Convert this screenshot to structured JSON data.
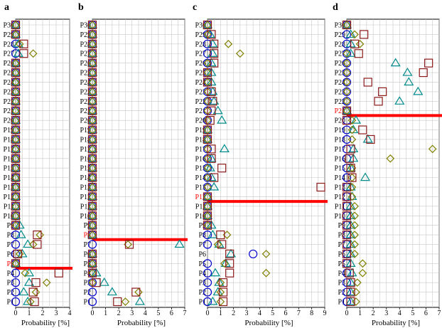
{
  "figure": {
    "xlabel": "Probability [%]",
    "categories": [
      "P1",
      "P2",
      "P3",
      "P4",
      "P5",
      "P6",
      "P7",
      "P8",
      "P9",
      "P10",
      "P11",
      "P12",
      "P13",
      "P14",
      "P15",
      "P16",
      "P17",
      "P18",
      "P19",
      "P20",
      "P21",
      "P22",
      "P23",
      "P24",
      "P25",
      "P26",
      "P27",
      "P28",
      "P29",
      "P30"
    ],
    "colors": {
      "square": "#8b1a1a",
      "diamond": "#808000",
      "triangle": "#008b8b",
      "circle": "#0000cc",
      "highlight": "#ff0000",
      "grid": "#c8c8c8"
    }
  },
  "chart_data": [
    {
      "type": "scatter",
      "panel": "a",
      "xlim": [
        0,
        4
      ],
      "xticks": [
        0,
        1,
        2,
        3,
        4
      ],
      "xlabel": "Probability [%]",
      "highlight": "P5",
      "series": [
        {
          "marker": "square",
          "values": [
            1.4,
            1.3,
            1.5,
            3.2,
            0,
            0.15,
            1.6,
            1.6,
            0,
            0,
            0,
            0,
            0,
            0,
            0,
            0,
            0,
            0,
            0,
            0,
            0,
            0,
            0,
            0,
            0,
            0,
            0.6,
            0.6,
            0,
            0
          ]
        },
        {
          "marker": "diamond",
          "values": [
            1.1,
            1.5,
            2.3,
            0.7,
            0,
            0.3,
            1.3,
            1.8,
            0,
            0,
            0,
            0,
            0,
            0,
            0,
            0,
            0,
            0,
            0,
            0,
            0,
            0,
            0,
            0,
            0,
            0,
            1.3,
            0.3,
            0,
            0
          ]
        },
        {
          "marker": "triangle",
          "values": [
            0.9,
            0.6,
            1.0,
            1.0,
            0,
            0.5,
            0.9,
            0.4,
            0.3,
            0,
            0,
            0,
            0,
            0,
            0,
            0,
            0,
            0,
            0,
            0,
            0,
            0,
            0,
            0,
            0,
            0,
            0.2,
            0.2,
            0,
            0
          ]
        },
        {
          "marker": "circle",
          "values": [
            0,
            0,
            0,
            0,
            0,
            0,
            0,
            0,
            0,
            0,
            0,
            0,
            0,
            0,
            0,
            0,
            0,
            0,
            0,
            0,
            0,
            0,
            0,
            0,
            0,
            0,
            0,
            0,
            0,
            0
          ]
        }
      ]
    },
    {
      "type": "scatter",
      "panel": "b",
      "xlim": [
        0,
        7
      ],
      "xticks": [
        0,
        1,
        2,
        3,
        4,
        5,
        6,
        7
      ],
      "xlabel": "Probability [%]",
      "highlight": "P8",
      "series": [
        {
          "marker": "square",
          "values": [
            1.9,
            3.3,
            0.3,
            0,
            0,
            0,
            2.8,
            0,
            0,
            0,
            0,
            0,
            0,
            0,
            0,
            0,
            0,
            0,
            0,
            0,
            0,
            0,
            0,
            0,
            0,
            0,
            0,
            0,
            0,
            0
          ]
        },
        {
          "marker": "diamond",
          "values": [
            2.5,
            3.5,
            0,
            0,
            0,
            0,
            2.7,
            0,
            0,
            0,
            0,
            0,
            0,
            0,
            0,
            0,
            0,
            0,
            0,
            0,
            0,
            0,
            0,
            0,
            0,
            0,
            0,
            0,
            0,
            0
          ]
        },
        {
          "marker": "triangle",
          "values": [
            3.6,
            1.5,
            0.9,
            0.3,
            0,
            0,
            6.6,
            0,
            0,
            0,
            0,
            0,
            0,
            0,
            0,
            0,
            0,
            0,
            0,
            0,
            0,
            0,
            0,
            0,
            0,
            0,
            0,
            0,
            0,
            0
          ]
        },
        {
          "marker": "circle",
          "values": [
            0,
            0,
            0,
            0,
            0,
            0,
            0,
            0,
            0,
            0,
            0,
            0,
            0,
            0,
            0,
            0,
            0,
            0,
            0,
            0,
            0,
            0,
            0,
            0,
            0,
            0,
            0,
            0,
            0,
            0
          ]
        }
      ]
    },
    {
      "type": "scatter",
      "panel": "c",
      "xlim": [
        0,
        9
      ],
      "xticks": [
        0,
        1,
        2,
        3,
        4,
        5,
        6,
        7,
        8,
        9
      ],
      "xlabel": "Probability [%]",
      "highlight": "P12",
      "series": [
        {
          "marker": "square",
          "values": [
            1.2,
            1.2,
            1.2,
            1.7,
            1.7,
            1.7,
            1.1,
            1.0,
            0,
            0,
            0,
            0,
            8.7,
            0.5,
            1.1,
            0.3,
            0.3,
            0,
            0,
            0.2,
            0.3,
            0.4,
            0.3,
            0,
            0,
            0.5,
            0.5,
            0.5,
            0.3,
            0
          ]
        },
        {
          "marker": "diamond",
          "values": [
            1.0,
            1.0,
            1.0,
            4.5,
            1.3,
            4.5,
            0.8,
            1.5,
            0,
            0,
            0,
            0,
            0,
            0,
            0,
            0,
            0,
            0,
            0,
            0,
            0,
            0,
            0,
            0,
            0,
            0,
            2.5,
            1.6,
            0,
            0
          ]
        },
        {
          "marker": "triangle",
          "values": [
            0.4,
            0.8,
            0.9,
            0.6,
            1.4,
            1.8,
            0.9,
            0.4,
            0.3,
            0,
            0,
            0,
            0.5,
            0.3,
            0.2,
            0.3,
            1.3,
            0,
            0,
            1.1,
            0.8,
            0.5,
            0.4,
            0.3,
            0.3,
            0.3,
            0.4,
            0.4,
            0.2,
            0
          ]
        },
        {
          "marker": "circle",
          "values": [
            0,
            0,
            0,
            0,
            0,
            3.5,
            0,
            0,
            0,
            0,
            0,
            0,
            0,
            0,
            0,
            0,
            0,
            0,
            0,
            0,
            0,
            0,
            0,
            0,
            0,
            0,
            0,
            0,
            0,
            0
          ]
        }
      ]
    },
    {
      "type": "scatter",
      "panel": "d",
      "xlim": [
        0,
        7
      ],
      "xticks": [
        0,
        1,
        2,
        3,
        4,
        5,
        6,
        7
      ],
      "xlabel": "Probability [%]",
      "highlight": "P21",
      "series": [
        {
          "marker": "square",
          "values": [
            0.3,
            0.3,
            0.3,
            0.2,
            0,
            0,
            0,
            0,
            0,
            0,
            0,
            0,
            0,
            0.4,
            0.3,
            0.2,
            0.3,
            1.8,
            1.2,
            0,
            0,
            2.4,
            2.7,
            1.6,
            5.8,
            6.2,
            0.9,
            0.6,
            1.3,
            0
          ]
        },
        {
          "marker": "diamond",
          "values": [
            0.7,
            0.7,
            0.8,
            1.2,
            1.2,
            0.6,
            0.6,
            0.6,
            0.6,
            0.6,
            0.6,
            0.4,
            0.4,
            0.4,
            0.4,
            3.3,
            6.5,
            0.4,
            0.4,
            0.4,
            0,
            0,
            0,
            0,
            0,
            0,
            0,
            1.0,
            0.6,
            0
          ]
        },
        {
          "marker": "triangle",
          "values": [
            0.3,
            0.3,
            0.3,
            0.4,
            0.3,
            0.3,
            0.3,
            0.3,
            0.3,
            0.3,
            0.3,
            0.4,
            0.3,
            1.4,
            0.3,
            0.5,
            0.5,
            1.6,
            0.5,
            0.7,
            0,
            4.0,
            5.4,
            4.7,
            4.6,
            3.7,
            0.3,
            0.3,
            0.3,
            0
          ]
        },
        {
          "marker": "circle",
          "values": [
            0,
            0,
            0,
            0,
            0,
            0,
            0,
            0,
            0,
            0,
            0,
            0,
            0,
            0,
            0,
            0,
            0,
            0,
            0,
            0,
            0,
            0,
            0,
            0,
            0,
            0,
            0,
            0,
            0,
            0
          ]
        }
      ]
    }
  ]
}
